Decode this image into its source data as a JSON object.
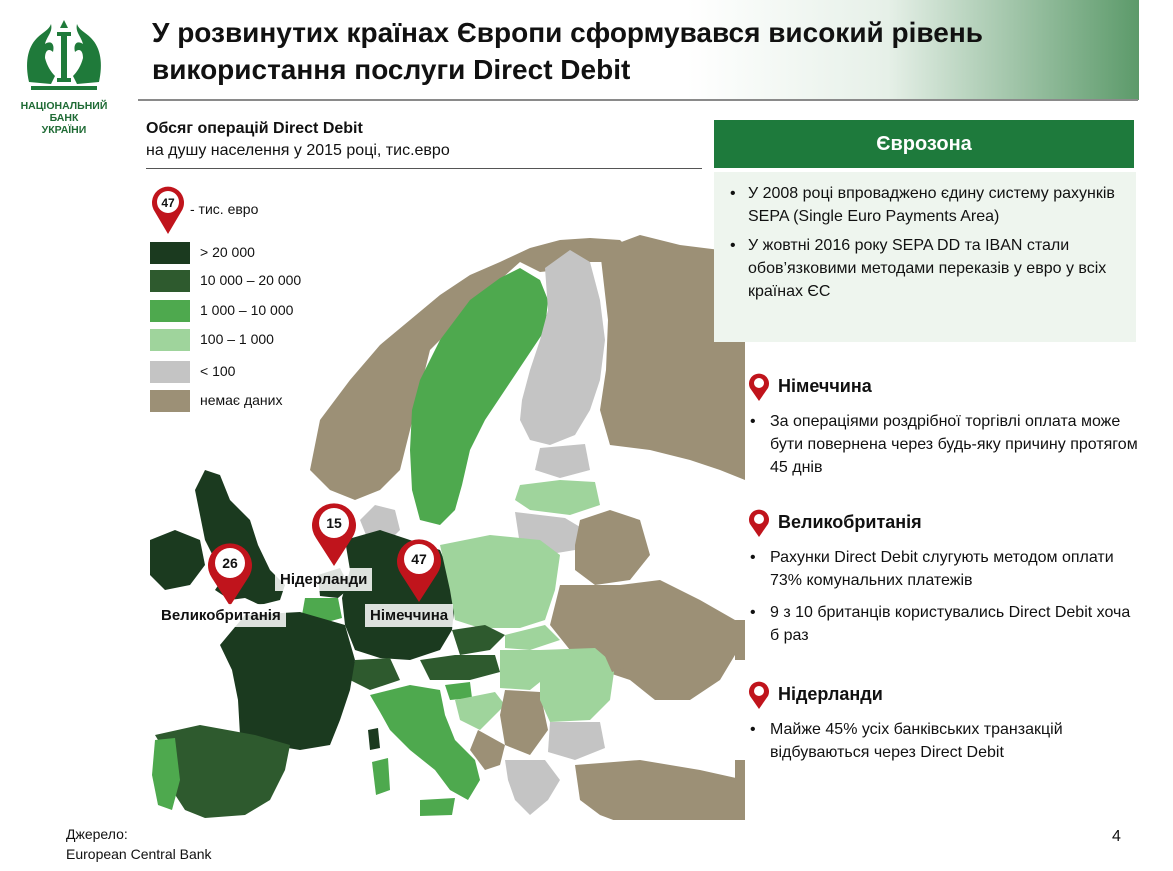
{
  "logo": {
    "icon": "nbu-griffin-emblem-icon",
    "lines": [
      "НАЦІОНАЛЬНИЙ",
      "БАНК",
      "УКРАЇНИ"
    ]
  },
  "title": {
    "line1": "У розвинутих країнах Європи сформувався високий рівень",
    "line2": "використання послуги Direct Debit"
  },
  "map_panel": {
    "subtitle_bold": "Обсяг операцій Direct Debit",
    "subtitle_rest": "на душу населення у 2015 році, тис.евро",
    "legend_pin_value": "47",
    "legend_pin_label": "- тис. евро",
    "legend": [
      {
        "label": "> 20 000",
        "color": "#1b3a1f"
      },
      {
        "label": "10 000 – 20 000",
        "color": "#2e5a2e"
      },
      {
        "label": "1 000 – 10 000",
        "color": "#4ea94e"
      },
      {
        "label": "100 – 1 000",
        "color": "#9fd49c"
      },
      {
        "label": "< 100",
        "color": "#c4c4c4"
      },
      {
        "label": "немає даних",
        "color": "#9c9076"
      }
    ],
    "pins": [
      {
        "value": "26",
        "country": "Великобританія"
      },
      {
        "value": "15",
        "country": "Нідерланди"
      },
      {
        "value": "47",
        "country": "Німеччина"
      }
    ]
  },
  "eurozone": {
    "header": "Єврозона",
    "items": [
      "У 2008 році впроваджено єдину систему рахунків SEPA (Single Euro Payments Area)",
      "У жовтні 2016 року SEPA DD та IBAN стали обов’язковими методами переказів у евро у всіх країнах ЄС"
    ]
  },
  "sections": [
    {
      "title": "Німеччина",
      "items": [
        "За операціями роздрібної торгівлі оплата може бути повернена через будь-яку причину протягом 45 днів"
      ]
    },
    {
      "title": "Великобританія",
      "items": [
        "Рахунки Direct Debit слугують методом оплати 73% комунальних платежів",
        "9 з 10 британців користувались Direct Debit хоча б раз"
      ]
    },
    {
      "title": "Нідерланди",
      "items": [
        "Майже 45% усіх банківських транзакцій відбуваються через Direct Debit"
      ]
    }
  ],
  "source": {
    "line1": "Джерело:",
    "line2": "European Central Bank"
  },
  "page_number": "4",
  "colors": {
    "accent_green": "#1e7a3c",
    "pin_red": "#c0141c"
  }
}
